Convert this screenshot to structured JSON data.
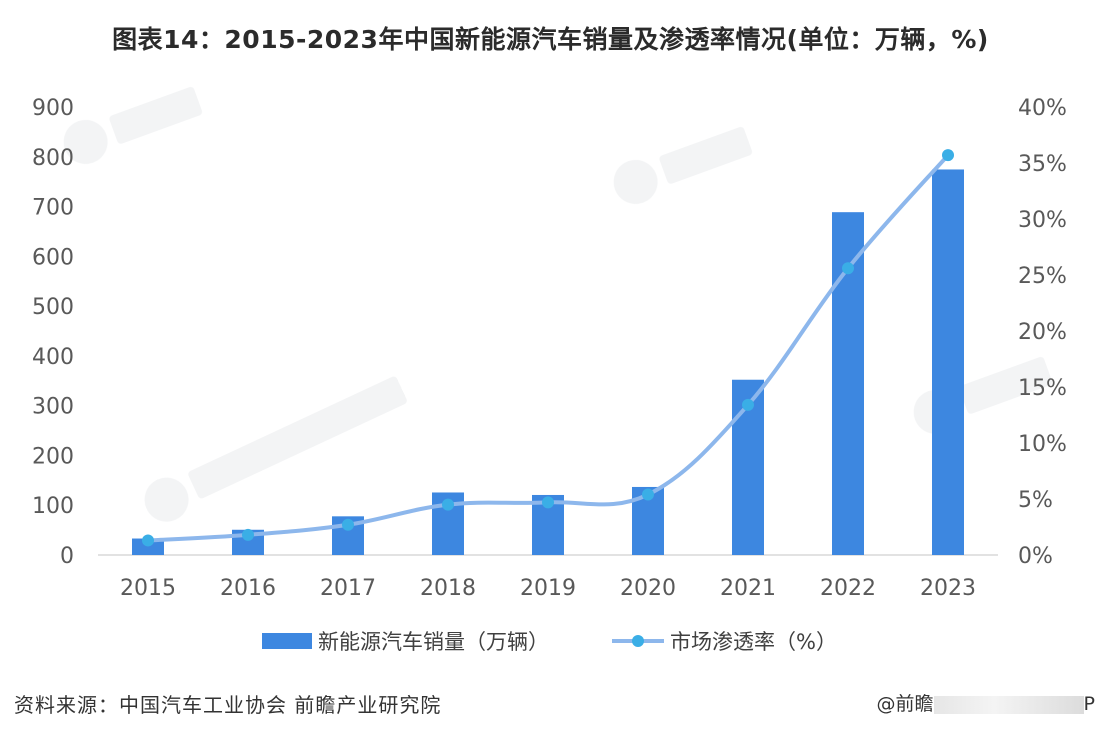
{
  "title": "图表14：2015-2023年中国新能源汽车销量及渗透率情况(单位：万辆，%)",
  "source": "资料来源：中国汽车工业协会 前瞻产业研究院",
  "credit": {
    "prefix": "@前瞻",
    "suffix": "P"
  },
  "colors": {
    "bar": "#3d87e0",
    "line": "#8db7ec",
    "marker": "#3aaee6",
    "baseline": "#d9d9d9"
  },
  "chart_data": {
    "type": "bar+line",
    "categories": [
      "2015",
      "2016",
      "2017",
      "2018",
      "2019",
      "2020",
      "2021",
      "2022",
      "2023"
    ],
    "series": [
      {
        "name": "新能源汽车销量（万辆）",
        "type": "bar",
        "axis": "left",
        "values": [
          33.1,
          50.7,
          77.7,
          125.6,
          120.6,
          136.7,
          352.1,
          688.7,
          774.5
        ]
      },
      {
        "name": "市场渗透率（%）",
        "type": "line",
        "axis": "right",
        "values": [
          1.3,
          1.8,
          2.7,
          4.5,
          4.7,
          5.4,
          13.4,
          25.6,
          35.7
        ]
      }
    ],
    "y_left": {
      "ylim": [
        0,
        900
      ],
      "ticks": [
        "0",
        "100",
        "200",
        "300",
        "400",
        "500",
        "600",
        "700",
        "800",
        "900"
      ]
    },
    "y_right": {
      "ylim": [
        0,
        40
      ],
      "ticks": [
        "0%",
        "5%",
        "10%",
        "15%",
        "20%",
        "25%",
        "30%",
        "35%",
        "40%"
      ]
    },
    "grid": false,
    "legend_position": "bottom"
  }
}
